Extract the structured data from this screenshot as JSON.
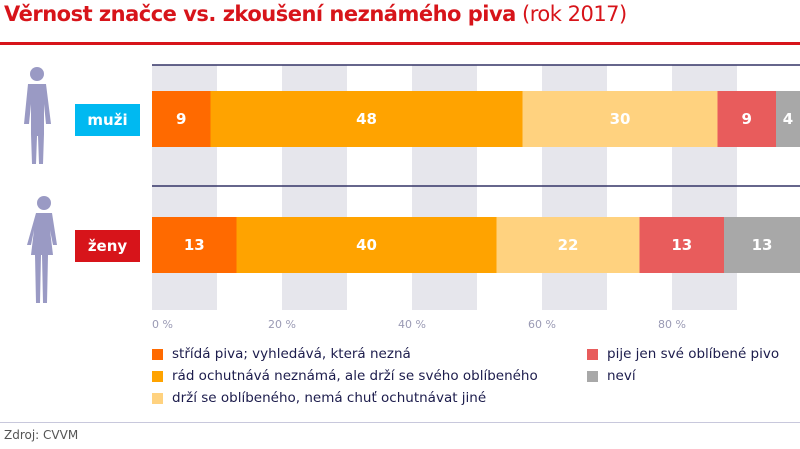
{
  "title": {
    "main": "Věrnost značce vs. zkoušení neznámého piva",
    "year": "(rok 2017)"
  },
  "source": "Zdroj: CVVM",
  "chart_data": {
    "type": "bar",
    "orientation": "horizontal",
    "stacked": true,
    "categories": [
      "muži",
      "ženy"
    ],
    "category_colors": [
      "#00b9f1",
      "#d7141a"
    ],
    "series": [
      {
        "name": "střídá piva; vyhledává, která nezná",
        "color": "#ff6a00",
        "values": [
          9,
          13
        ]
      },
      {
        "name": "rád ochutnává neznámá, ale drží se svého oblíbeného",
        "color": "#ffa300",
        "values": [
          48,
          40
        ]
      },
      {
        "name": "drží se oblíbeného, nemá chuť ochutnávat jiné",
        "color": "#ffd27f",
        "values": [
          30,
          22
        ]
      },
      {
        "name": "pije jen své oblíbené pivo",
        "color": "#e85c5c",
        "values": [
          9,
          13
        ]
      },
      {
        "name": "neví",
        "color": "#a8a8a8",
        "values": [
          4,
          13
        ]
      }
    ],
    "xticks": [
      "0 %",
      "20 %",
      "40 %",
      "60 %",
      "80 %"
    ],
    "xlim": [
      0,
      100
    ],
    "grid": "alternating bands",
    "legend": "bottom"
  }
}
